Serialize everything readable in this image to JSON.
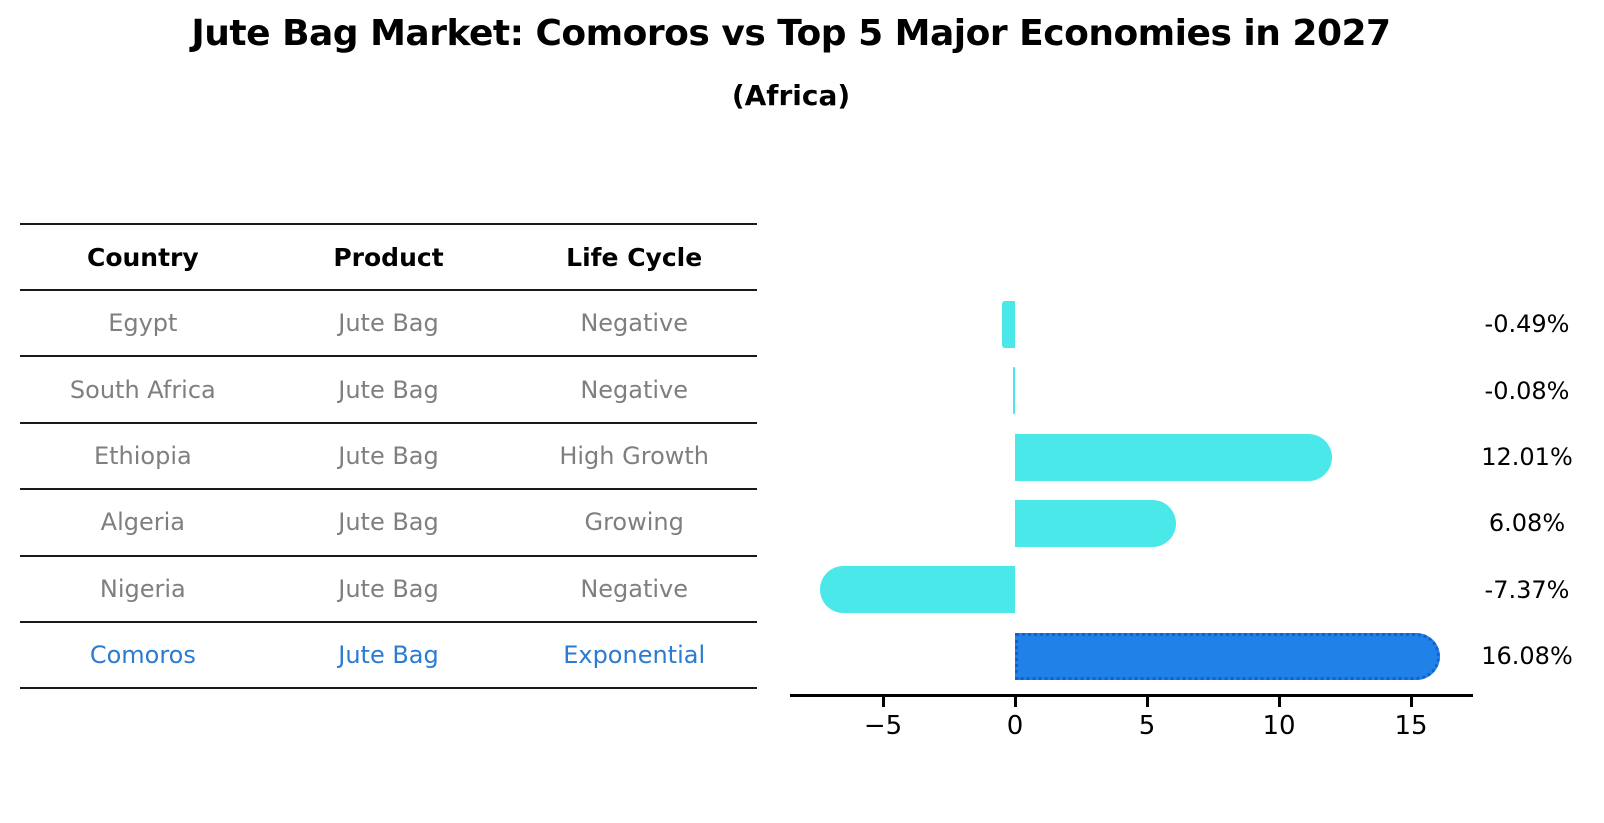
{
  "title": "Jute Bag Market: Comoros vs Top 5 Major Economies in 2027",
  "subtitle": "(Africa)",
  "table": {
    "headers": [
      "Country",
      "Product",
      "Life Cycle"
    ],
    "rows": [
      {
        "country": "Egypt",
        "product": "Jute Bag",
        "life_cycle": "Negative",
        "highlight": false
      },
      {
        "country": "South Africa",
        "product": "Jute Bag",
        "life_cycle": "Negative",
        "highlight": false
      },
      {
        "country": "Ethiopia",
        "product": "Jute Bag",
        "life_cycle": "High Growth",
        "highlight": false
      },
      {
        "country": "Algeria",
        "product": "Jute Bag",
        "life_cycle": "Growing",
        "highlight": false
      },
      {
        "country": "Nigeria",
        "product": "Jute Bag",
        "life_cycle": "Negative",
        "highlight": false
      },
      {
        "country": "Comoros",
        "product": "Jute Bag",
        "life_cycle": "Exponential",
        "highlight": true
      }
    ]
  },
  "chart_data": {
    "type": "bar",
    "orientation": "horizontal",
    "categories": [
      "Egypt",
      "South Africa",
      "Ethiopia",
      "Algeria",
      "Nigeria",
      "Comoros"
    ],
    "values": [
      -0.49,
      -0.08,
      12.01,
      6.08,
      -7.37,
      16.08
    ],
    "value_labels": [
      "-0.49%",
      "-0.08%",
      "12.01%",
      "6.08%",
      "-7.37%",
      "16.08%"
    ],
    "x_ticks": [
      -5,
      0,
      5,
      10,
      15
    ],
    "x_tick_labels": [
      "−5",
      "0",
      "5",
      "10",
      "15"
    ],
    "xlim": [
      -8.5,
      17.35
    ],
    "grid": false,
    "legend": "none",
    "highlight_index": 5,
    "bar_color": "#4AE8E8",
    "highlight_color": "#2082E8",
    "highlight_edge_color": "#1460CC"
  },
  "colors": {
    "background": "#FFFFFF",
    "title_text": "#000000",
    "table_header_text": "#000000",
    "table_text": "#7F7F7F",
    "table_line": "#1A1A1A",
    "highlight_text": "#2B7BD1",
    "axis": "#000000",
    "value_label_text": "#000000"
  }
}
